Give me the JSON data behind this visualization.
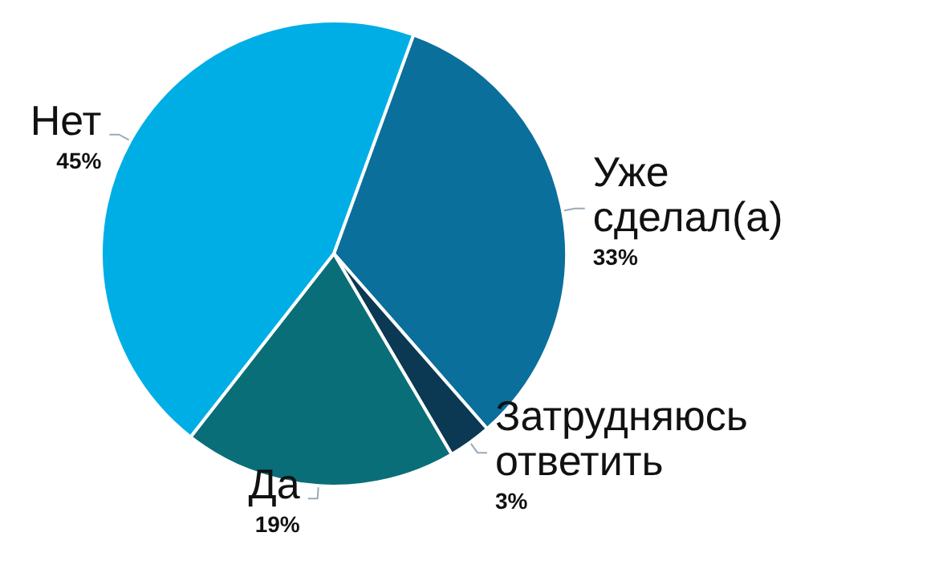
{
  "chart_data": {
    "type": "pie",
    "categories": [
      "Уже сделал(а)",
      "Затрудняюсь ответить",
      "Да",
      "Нет"
    ],
    "values": [
      33,
      3,
      19,
      45
    ],
    "value_labels": [
      "33%",
      "3%",
      "19%",
      "45%"
    ],
    "colors": [
      "#0b6f9c",
      "#0b3953",
      "#0a6e78",
      "#00aee6"
    ],
    "legend": false
  }
}
